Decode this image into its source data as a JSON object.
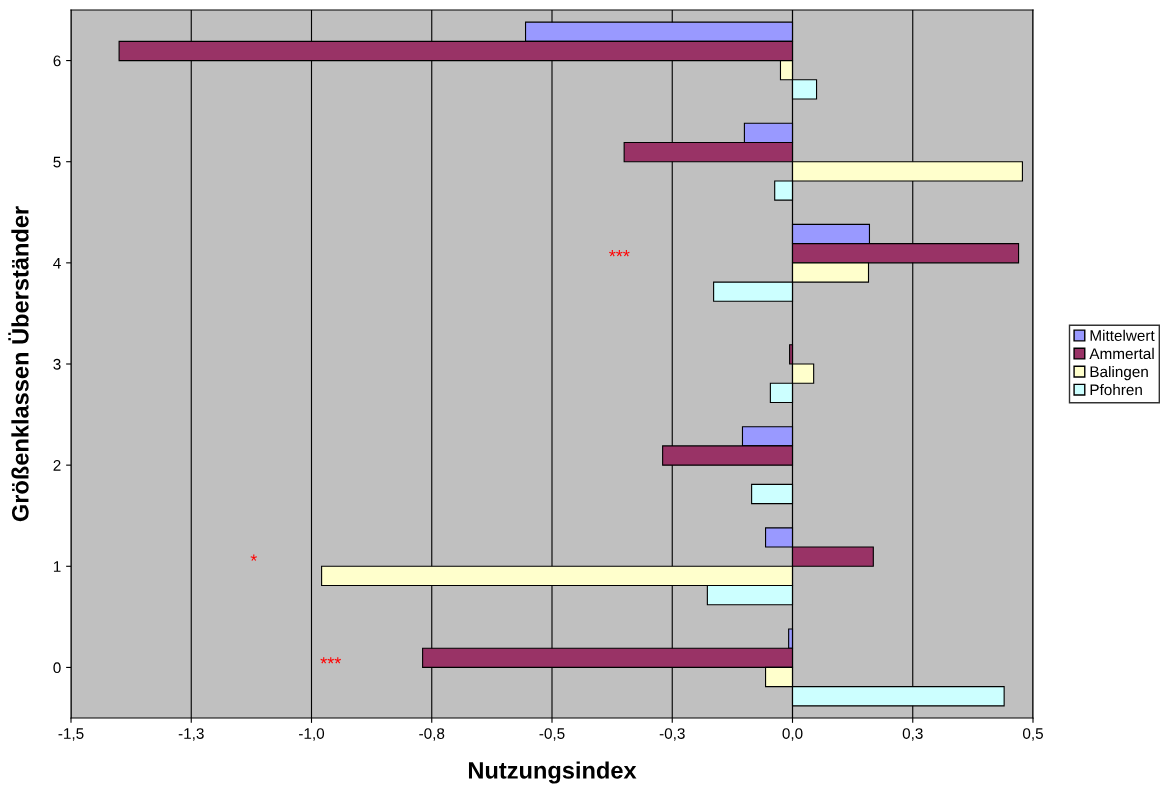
{
  "chart_data": {
    "type": "bar",
    "orientation": "horizontal",
    "xlabel": "Nutzungsindex",
    "ylabel": "Größenklassen Überständer",
    "categories": [
      "6",
      "5",
      "4",
      "3",
      "2",
      "1",
      "0"
    ],
    "series": [
      {
        "name": "Mittelwert",
        "color": "#9999ff",
        "values": [
          -0.555,
          -0.1,
          0.16,
          null,
          -0.104,
          -0.056,
          -0.008
        ]
      },
      {
        "name": "Ammertal",
        "color": "#993366",
        "values": [
          -1.4,
          -0.35,
          0.47,
          -0.006,
          -0.27,
          0.168,
          -0.769
        ]
      },
      {
        "name": "Balingen",
        "color": "#ffffcc",
        "values": [
          -0.025,
          0.478,
          0.158,
          0.044,
          null,
          -0.979,
          -0.056
        ]
      },
      {
        "name": "Pfohren",
        "color": "#ccffff",
        "values": [
          0.05,
          -0.037,
          -0.164,
          -0.046,
          -0.085,
          -0.177,
          0.44
        ]
      }
    ],
    "xlim": [
      -1.5,
      0.5
    ],
    "xticks": [
      {
        "value": -1.5,
        "label": "-1,5"
      },
      {
        "value": -1.25,
        "label": "-1,3"
      },
      {
        "value": -1.0,
        "label": "-1,0"
      },
      {
        "value": -0.75,
        "label": "-0,8"
      },
      {
        "value": -0.5,
        "label": "-0,5"
      },
      {
        "value": -0.25,
        "label": "-0,3"
      },
      {
        "value": 0,
        "label": "0,0"
      },
      {
        "value": 0.25,
        "label": "0,3"
      },
      {
        "value": 0.5,
        "label": "0,5"
      }
    ],
    "annotations": [
      "***",
      "*",
      "***"
    ],
    "grid": "x",
    "legend": "right"
  }
}
